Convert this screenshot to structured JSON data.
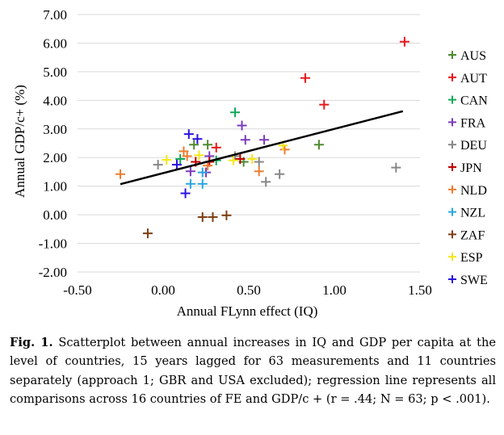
{
  "chart_data": {
    "type": "scatter",
    "xlabel": "Annual FLynn effect (IQ)",
    "ylabel": "Annual GDP/c+ (%)",
    "xlim": [
      -0.5,
      1.5
    ],
    "ylim": [
      -2.0,
      7.0
    ],
    "xticks": [
      "-0.50",
      "0.00",
      "0.50",
      "1.00",
      "1.50"
    ],
    "yticks": [
      "-2.00",
      "-1.00",
      "0.00",
      "1.00",
      "2.00",
      "3.00",
      "4.00",
      "5.00",
      "6.00",
      "7.00"
    ],
    "xtick_values": [
      -0.5,
      0.0,
      0.5,
      1.0,
      1.5
    ],
    "ytick_values": [
      -2,
      -1,
      0,
      1,
      2,
      3,
      4,
      5,
      6,
      7
    ],
    "grid": "horizontal",
    "legend_position": "right",
    "marker": "+",
    "series": [
      {
        "name": "AUS",
        "color": "#4e8a2f",
        "points": [
          [
            0.18,
            2.45
          ],
          [
            0.26,
            2.45
          ],
          [
            0.91,
            2.45
          ],
          [
            0.47,
            1.85
          ]
        ]
      },
      {
        "name": "AUT",
        "color": "#e8161a",
        "points": [
          [
            1.41,
            6.05
          ],
          [
            0.83,
            4.78
          ],
          [
            0.94,
            3.85
          ],
          [
            0.31,
            2.35
          ]
        ]
      },
      {
        "name": "CAN",
        "color": "#13a85a",
        "points": [
          [
            0.42,
            3.58
          ],
          [
            0.1,
            1.95
          ],
          [
            0.31,
            1.9
          ]
        ]
      },
      {
        "name": "FRA",
        "color": "#7a3bbd",
        "points": [
          [
            0.46,
            3.12
          ],
          [
            0.48,
            2.62
          ],
          [
            0.59,
            2.62
          ],
          [
            0.27,
            2.05
          ],
          [
            0.16,
            1.52
          ],
          [
            0.25,
            1.48
          ]
        ]
      },
      {
        "name": "DEU",
        "color": "#878787",
        "points": [
          [
            -0.03,
            1.75
          ],
          [
            0.56,
            1.85
          ],
          [
            0.6,
            1.15
          ],
          [
            0.68,
            1.42
          ],
          [
            1.36,
            1.65
          ],
          [
            0.42,
            2.05
          ]
        ]
      },
      {
        "name": "JPN",
        "color": "#c00000",
        "points": [
          [
            0.19,
            1.85
          ],
          [
            0.27,
            1.85
          ],
          [
            0.45,
            1.95
          ]
        ]
      },
      {
        "name": "NLD",
        "color": "#ed7d31",
        "points": [
          [
            -0.25,
            1.42
          ],
          [
            0.12,
            2.22
          ],
          [
            0.14,
            2.05
          ],
          [
            0.56,
            1.52
          ],
          [
            0.71,
            2.28
          ],
          [
            0.26,
            1.72
          ]
        ]
      },
      {
        "name": "NZL",
        "color": "#2aa6e0",
        "points": [
          [
            0.16,
            1.08
          ],
          [
            0.23,
            1.48
          ],
          [
            0.23,
            1.08
          ]
        ]
      },
      {
        "name": "ZAF",
        "color": "#7b3d10",
        "points": [
          [
            -0.09,
            -0.65
          ],
          [
            0.23,
            -0.08
          ],
          [
            0.29,
            -0.08
          ],
          [
            0.37,
            -0.02
          ]
        ]
      },
      {
        "name": "ESP",
        "color": "#f5e618",
        "points": [
          [
            0.02,
            1.92
          ],
          [
            0.21,
            2.08
          ],
          [
            0.41,
            1.9
          ],
          [
            0.52,
            1.95
          ],
          [
            0.7,
            2.42
          ]
        ]
      },
      {
        "name": "SWE",
        "color": "#2a12e0",
        "points": [
          [
            0.15,
            2.82
          ],
          [
            0.2,
            2.65
          ],
          [
            0.08,
            1.75
          ],
          [
            0.13,
            0.75
          ]
        ]
      }
    ],
    "regression": {
      "x": [
        -0.25,
        1.4
      ],
      "y": [
        1.07,
        3.62
      ]
    }
  },
  "caption": {
    "label": "Fig. 1.",
    "text": " Scatterplot between annual increases in IQ and GDP per capita at the level of countries, 15 years lagged for 63 measurements and 11 countries separately (approach 1; GBR and USA excluded); regression line represents all comparisons across 16 countries of FE and GDP/c + (r = .44; N = 63; p < .001)."
  }
}
